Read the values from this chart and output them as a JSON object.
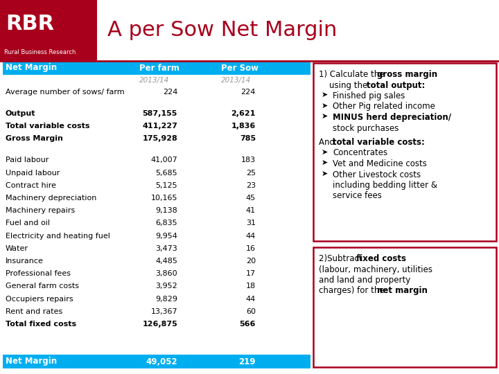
{
  "title": "A per Sow Net Margin",
  "header_bg": "#00AEEF",
  "rbr_red": "#A8001C",
  "table_col1_header": "Net Margin",
  "table_col2_header": "Per farm",
  "table_col3_header": "Per Sow",
  "col2_subheader": "2013/14",
  "col3_subheader": "2013/14",
  "rows": [
    [
      "Average number of sows/ farm",
      "224",
      "224"
    ],
    [
      "",
      "",
      ""
    ],
    [
      "Output",
      "587,155",
      "2,621"
    ],
    [
      "Total variable costs",
      "411,227",
      "1,836"
    ],
    [
      "Gross Margin",
      "175,928",
      "785"
    ],
    [
      "",
      "",
      ""
    ],
    [
      "Paid labour",
      "41,007",
      "183"
    ],
    [
      "Unpaid labour",
      "5,685",
      "25"
    ],
    [
      "Contract hire",
      "5,125",
      "23"
    ],
    [
      "Machinery depreciation",
      "10,165",
      "45"
    ],
    [
      "Machinery repairs",
      "9,138",
      "41"
    ],
    [
      "Fuel and oil",
      "6,835",
      "31"
    ],
    [
      "Electricity and heating fuel",
      "9,954",
      "44"
    ],
    [
      "Water",
      "3,473",
      "16"
    ],
    [
      "Insurance",
      "4,485",
      "20"
    ],
    [
      "Professional fees",
      "3,860",
      "17"
    ],
    [
      "General farm costs",
      "3,952",
      "18"
    ],
    [
      "Occupiers repairs",
      "9,829",
      "44"
    ],
    [
      "Rent and rates",
      "13,367",
      "60"
    ],
    [
      "Total fixed costs",
      "126,875",
      "566"
    ]
  ],
  "bold_rows": [
    2,
    3,
    4,
    19
  ],
  "footer_row": [
    "Net Margin",
    "49,052",
    "219"
  ],
  "box1_lines": [
    {
      "parts": [
        {
          "text": "1) Calculate the ",
          "bold": false
        },
        {
          "text": "gross margin",
          "bold": true
        }
      ]
    },
    {
      "parts": [
        {
          "text": "    using the ",
          "bold": false
        },
        {
          "text": "total output:",
          "bold": true
        }
      ]
    },
    {
      "bullet": true,
      "text": "Finished pig sales",
      "bold": false
    },
    {
      "bullet": true,
      "text": "Other Pig related income",
      "bold": false
    },
    {
      "bullet": true,
      "text": "MINUS herd depreciation/",
      "bold": true
    },
    {
      "indent": true,
      "text": "stock purchases",
      "bold": false
    },
    {
      "parts": [
        {
          "text": "",
          "bold": false
        }
      ]
    },
    {
      "parts": [
        {
          "text": "And ",
          "bold": false
        },
        {
          "text": "total variable costs:",
          "bold": true
        }
      ]
    },
    {
      "bullet": true,
      "text": "Concentrates",
      "bold": false
    },
    {
      "bullet": true,
      "text": "Vet and Medicine costs",
      "bold": false
    },
    {
      "bullet": true,
      "text": "Other Livestock costs",
      "bold": false
    },
    {
      "indent": true,
      "text": "including bedding litter &",
      "bold": false
    },
    {
      "indent": true,
      "text": "service fees",
      "bold": false
    }
  ],
  "box2_lines": [
    {
      "parts": [
        {
          "text": "2)Subtract ",
          "bold": false
        },
        {
          "text": "fixed costs",
          "bold": true
        }
      ]
    },
    {
      "parts": [
        {
          "text": "(labour, machinery, utilities",
          "bold": false
        }
      ]
    },
    {
      "parts": [
        {
          "text": "and land and property",
          "bold": false
        }
      ]
    },
    {
      "parts": [
        {
          "text": "charges) for the ",
          "bold": false
        },
        {
          "text": "net margin",
          "bold": true
        }
      ]
    }
  ]
}
